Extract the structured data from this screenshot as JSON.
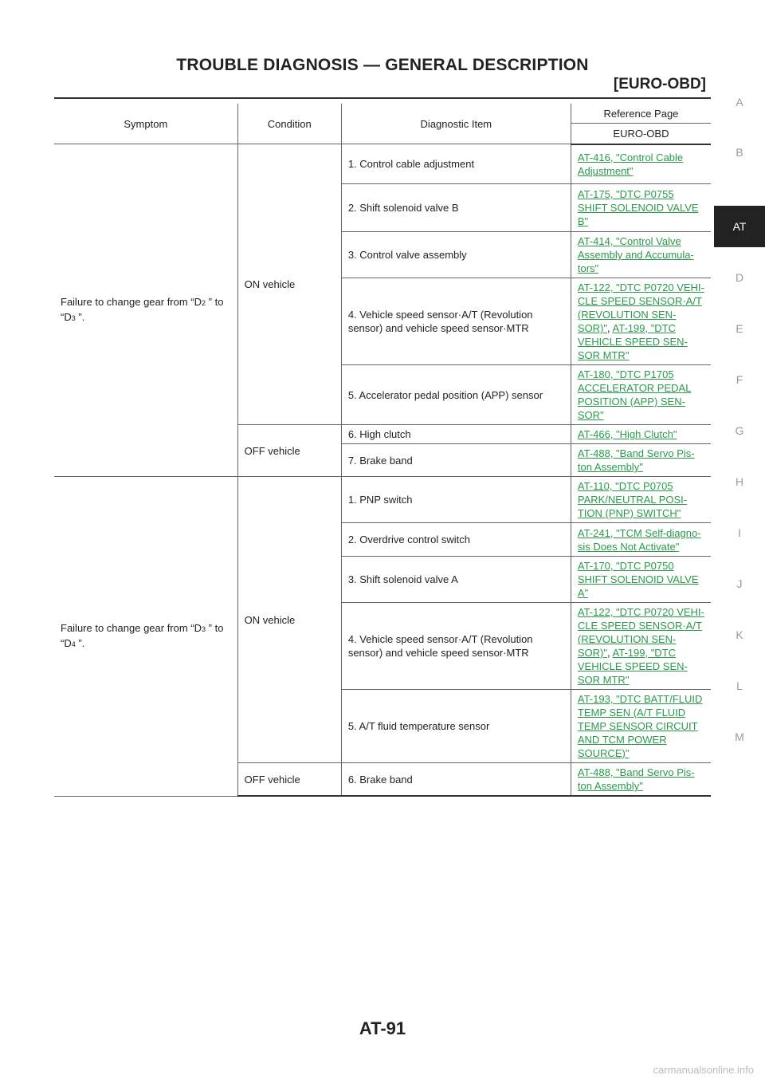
{
  "header": {
    "title": "TROUBLE DIAGNOSIS — GENERAL DESCRIPTION",
    "section": "[EURO-OBD]"
  },
  "side_index": {
    "letters": [
      "A",
      "B",
      "AT",
      "D",
      "E",
      "F",
      "G",
      "H",
      "I",
      "J",
      "K",
      "L",
      "M"
    ],
    "active": "AT"
  },
  "table": {
    "headers": {
      "symptom": "Symptom",
      "condition": "Condition",
      "item": "Diagnostic Item",
      "reference": "Reference Page",
      "reference_sub": "EURO-OBD"
    },
    "groups": [
      {
        "symptom_pre": "Failure to change gear from “D",
        "symptom_sub1": "2",
        "symptom_mid": " ” to “D",
        "symptom_sub2": "3",
        "symptom_post": " ”.",
        "on_vehicle": "ON vehicle",
        "off_vehicle": "OFF vehicle",
        "items": [
          {
            "item": "1. Control cable adjustment",
            "ref": "AT-416, \"Control Cable Adjustment\""
          },
          {
            "item": "2. Shift solenoid valve B",
            "ref": "AT-175, \"DTC P0755 SHIFT SOLENOID VALVE B\""
          },
          {
            "item": "3. Control valve assembly",
            "ref": "AT-414, \"Control Valve Assembly and Accumula-tors\""
          },
          {
            "item": "4. Vehicle speed sensor·A/T (Revolution sensor) and vehicle speed sensor·MTR",
            "ref": "AT-122, \"DTC P0720 VEHI-CLE SPEED SENSOR·A/T (REVOLUTION SEN-SOR)\"",
            "ref2": "AT-199, \"DTC VEHICLE SPEED SEN-SOR MTR\""
          },
          {
            "item": "5. Accelerator pedal position (APP) sensor",
            "ref": "AT-180, \"DTC P1705 ACCELERATOR PEDAL POSITION (APP) SEN-SOR\""
          },
          {
            "item": "6. High clutch",
            "ref": "AT-466, \"High Clutch\""
          },
          {
            "item": "7. Brake band",
            "ref": "AT-488, \"Band Servo Pis-ton Assembly\""
          }
        ]
      },
      {
        "symptom_pre": "Failure to change gear from “D",
        "symptom_sub1": "3",
        "symptom_mid": " ” to “D",
        "symptom_sub2": "4",
        "symptom_post": " ”.",
        "on_vehicle": "ON vehicle",
        "off_vehicle": "OFF vehicle",
        "items": [
          {
            "item": "1. PNP switch",
            "ref": "AT-110, \"DTC P0705 PARK/NEUTRAL POSI-TION (PNP) SWITCH\""
          },
          {
            "item": "2. Overdrive control switch",
            "ref": "AT-241, \"TCM Self-diagno-sis Does Not Activate\""
          },
          {
            "item": "3. Shift solenoid valve A",
            "ref": "AT-170, \"DTC P0750 SHIFT SOLENOID VALVE A\""
          },
          {
            "item": "4. Vehicle speed sensor·A/T (Revolution sensor) and vehicle speed sensor·MTR",
            "ref": "AT-122, \"DTC P0720 VEHI-CLE SPEED SENSOR·A/T (REVOLUTION SEN-SOR)\"",
            "ref2": "AT-199, \"DTC VEHICLE SPEED SEN-SOR MTR\""
          },
          {
            "item": "5. A/T fluid temperature sensor",
            "ref": "AT-193, \"DTC BATT/FLUID TEMP SEN (A/T FLUID TEMP SENSOR CIRCUIT AND TCM POWER SOURCE)\""
          },
          {
            "item": "6. Brake band",
            "ref": "AT-488, \"Band Servo Pis-ton Assembly\""
          }
        ]
      }
    ],
    "ref_separator": ", "
  },
  "footer": {
    "page_number": "AT-91",
    "watermark": "carmanualsonline.info"
  }
}
